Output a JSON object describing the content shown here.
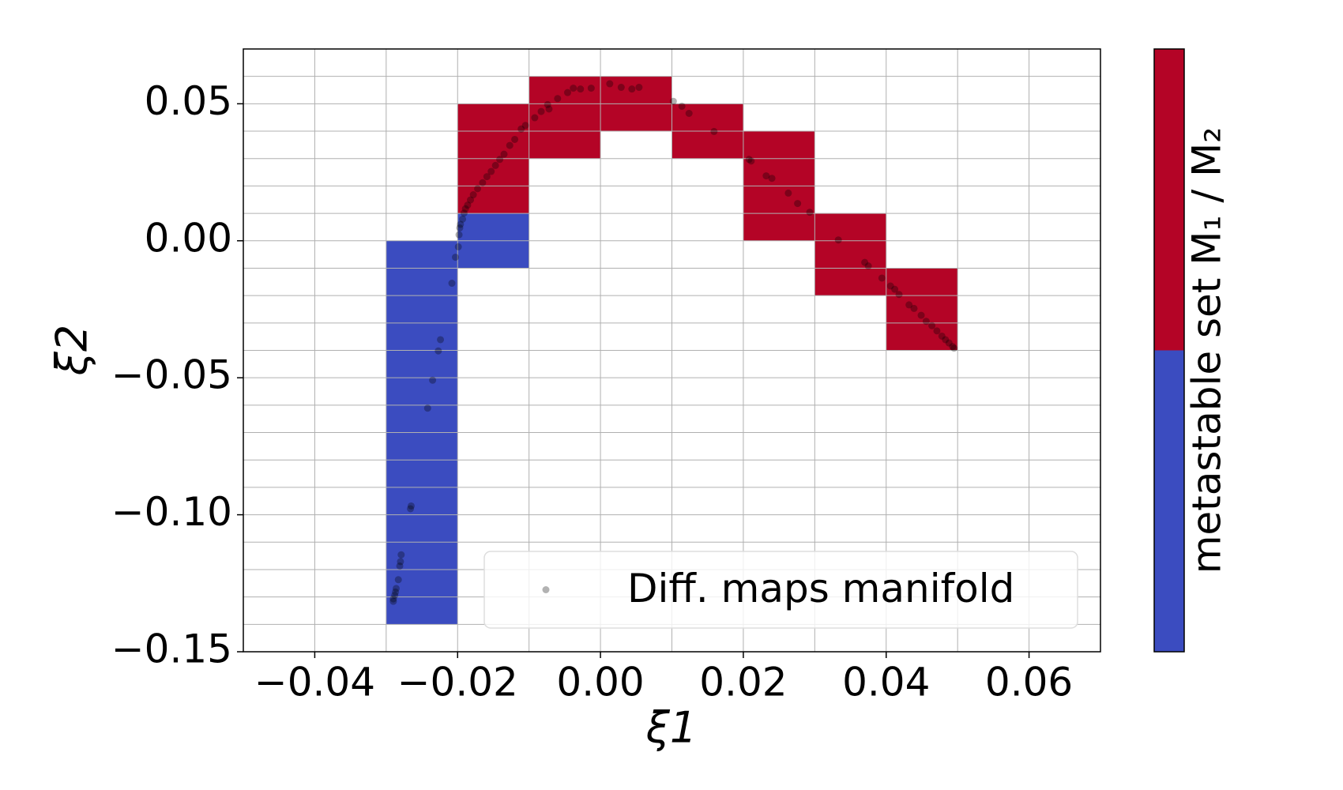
{
  "chart_data": {
    "type": "scatter",
    "xlabel": "ξ1",
    "ylabel": "ξ2",
    "xlim": [
      -0.05,
      0.07
    ],
    "ylim": [
      -0.15,
      0.07
    ],
    "xticks": [
      {
        "value": -0.04,
        "label": "−0.04"
      },
      {
        "value": -0.02,
        "label": "−0.02"
      },
      {
        "value": 0,
        "label": "0.00"
      },
      0.02,
      0.04,
      0.06
    ],
    "yticks": [
      {
        "value": -0.15,
        "label": "−0.15"
      },
      {
        "value": -0.1,
        "label": "−0.10"
      },
      {
        "value": -0.05,
        "label": "−0.05"
      },
      {
        "value": 0,
        "label": "0.00"
      },
      0.05
    ],
    "minor_xgrid": [
      -0.04,
      -0.03,
      -0.02,
      -0.01,
      0,
      0.01,
      0.02,
      0.03,
      0.04,
      0.05,
      0.06
    ],
    "minor_ygrid": [
      -0.14,
      -0.13,
      -0.12,
      -0.11,
      -0.1,
      -0.09,
      -0.08,
      -0.07,
      -0.06,
      -0.05,
      -0.04,
      -0.03,
      -0.02,
      -0.01,
      0,
      0.01,
      0.02,
      0.03,
      0.04,
      0.05,
      0.06
    ],
    "grid": true,
    "cells": [
      {
        "x0": -0.03,
        "x1": -0.02,
        "y0": -0.14,
        "y1": 0,
        "set": 0
      },
      {
        "x0": -0.02,
        "x1": -0.01,
        "y0": -0.01,
        "y1": 0.01,
        "set": 0
      },
      {
        "x0": -0.02,
        "x1": -0.01,
        "y0": 0.01,
        "y1": 0.05,
        "set": 1
      },
      {
        "x0": -0.01,
        "x1": 0,
        "y0": 0.03,
        "y1": 0.06,
        "set": 1
      },
      {
        "x0": 0,
        "x1": 0.01,
        "y0": 0.04,
        "y1": 0.06,
        "set": 1
      },
      {
        "x0": 0.01,
        "x1": 0.02,
        "y0": 0.03,
        "y1": 0.05,
        "set": 1
      },
      {
        "x0": 0.02,
        "x1": 0.03,
        "y0": 0,
        "y1": 0.04,
        "set": 1
      },
      {
        "x0": 0.03,
        "x1": 0.04,
        "y0": -0.02,
        "y1": 0.01,
        "set": 1
      },
      {
        "x0": 0.04,
        "x1": 0.05,
        "y0": -0.04,
        "y1": -0.01,
        "set": 1
      }
    ],
    "colorbar": {
      "label": "metastable set M₁ / M₂",
      "colors": [
        "#3b4cc0",
        "#b40426"
      ]
    },
    "series": [
      {
        "name": "Diff. maps manifold",
        "color": "#000000",
        "x": [
          -0.029,
          -0.029,
          -0.0288,
          -0.0287,
          -0.0286,
          -0.0283,
          -0.0281,
          -0.028,
          -0.0279,
          -0.0266,
          -0.0265,
          -0.0242,
          -0.0235,
          -0.0227,
          -0.0224,
          -0.0208,
          -0.0203,
          -0.0199,
          -0.0198,
          -0.0197,
          -0.0196,
          -0.0193,
          -0.0191,
          -0.0189,
          -0.0186,
          -0.0182,
          -0.0178,
          -0.0172,
          -0.0165,
          -0.0159,
          -0.0153,
          -0.0147,
          -0.0141,
          -0.0135,
          -0.0127,
          -0.012,
          -0.0111,
          -0.0105,
          -0.0092,
          -0.0083,
          -0.0074,
          -0.0072,
          -0.006,
          -0.0046,
          -0.0038,
          -0.0028,
          -0.0013,
          0.0013,
          0.0029,
          0.0044,
          0.0054,
          0.0102,
          0.0114,
          0.0124,
          0.0159,
          0.0208,
          0.0211,
          0.0232,
          0.024,
          0.0263,
          0.0276,
          0.0293,
          0.0333,
          0.037,
          0.0375,
          0.0394,
          0.0406,
          0.0412,
          0.0418,
          0.0432,
          0.0439,
          0.0449,
          0.0456,
          0.0464,
          0.0471,
          0.0478,
          0.0483,
          0.0488,
          0.0493,
          0.0495
        ],
        "values": [
          -0.1316,
          -0.1307,
          -0.1294,
          -0.1282,
          -0.1269,
          -0.1237,
          -0.1187,
          -0.1171,
          -0.1146,
          -0.0978,
          -0.0968,
          -0.0611,
          -0.0509,
          -0.0402,
          -0.0361,
          -0.0155,
          -0.006,
          -0.0022,
          0.0022,
          0.0047,
          0.006,
          0.0079,
          0.0101,
          0.0117,
          0.013,
          0.0149,
          0.0168,
          0.019,
          0.0212,
          0.0234,
          0.0253,
          0.0275,
          0.0297,
          0.0316,
          0.0348,
          0.037,
          0.0408,
          0.0421,
          0.0449,
          0.0472,
          0.0497,
          0.0481,
          0.0519,
          0.0541,
          0.0557,
          0.0554,
          0.0557,
          0.0573,
          0.056,
          0.0554,
          0.056,
          0.0509,
          0.0491,
          0.0465,
          0.0399,
          0.0297,
          0.0291,
          0.0237,
          0.0228,
          0.0174,
          0.0136,
          0.0104,
          0.0003,
          -0.0079,
          -0.0092,
          -0.0136,
          -0.0165,
          -0.0177,
          -0.0196,
          -0.0234,
          -0.0247,
          -0.0272,
          -0.0294,
          -0.031,
          -0.0329,
          -0.0348,
          -0.0361,
          -0.0373,
          -0.0386,
          -0.0392
        ]
      }
    ],
    "legend": "lower right"
  }
}
